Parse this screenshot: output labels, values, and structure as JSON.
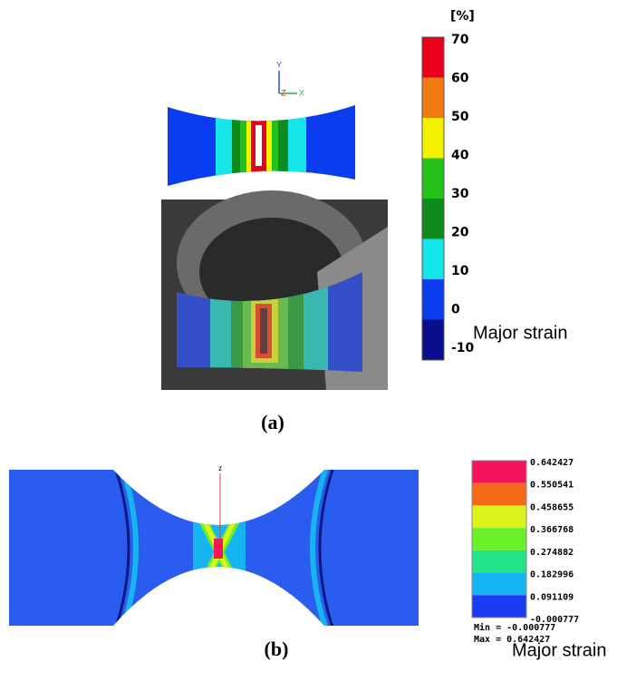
{
  "panel_a": {
    "unit": "[%]",
    "ticks": [
      70,
      60,
      50,
      40,
      30,
      20,
      10,
      0,
      -10
    ],
    "colors": [
      "#e8001c",
      "#f07a10",
      "#f4f000",
      "#22c21a",
      "#0f8a1e",
      "#14e6ea",
      "#0a3cf0",
      "#0a0d8c"
    ],
    "axes": {
      "y": "Y",
      "z": "Z",
      "x": "X"
    },
    "label": "Major strain",
    "caption": "(a)"
  },
  "panel_b": {
    "ticks": [
      "0.642427",
      "0.550541",
      "0.458655",
      "0.366768",
      "0.274882",
      "0.182996",
      "0.091109",
      "-0.000777"
    ],
    "colors": [
      "#f4145a",
      "#f46a18",
      "#dcf41a",
      "#6cf026",
      "#22e48a",
      "#16b4f0",
      "#1a3cf4"
    ],
    "min": "Min = -0.000777",
    "max": "Max = 0.642427",
    "axis": "z",
    "label": "Major strain",
    "caption": "(b)"
  }
}
